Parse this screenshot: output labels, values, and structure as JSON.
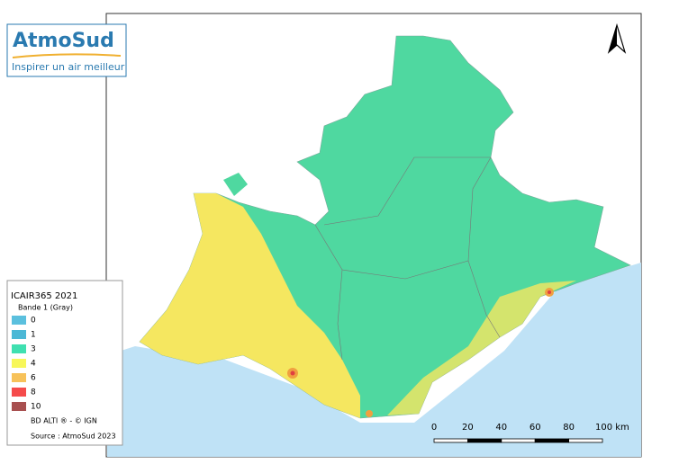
{
  "logo": {
    "name": "AtmoSud",
    "tagline": "Inspirer un air meilleur"
  },
  "legend": {
    "title": "ICAIR365 2021",
    "band": "Bande 1 (Gray)",
    "items": [
      {
        "label": "0",
        "color": "#5bc0de"
      },
      {
        "label": "1",
        "color": "#4cb8d6"
      },
      {
        "label": "3",
        "color": "#3fe0b0"
      },
      {
        "label": "4",
        "color": "#f7f75a"
      },
      {
        "label": "6",
        "color": "#f7c25a"
      },
      {
        "label": "8",
        "color": "#f54b4b"
      },
      {
        "label": "10",
        "color": "#a85050"
      }
    ],
    "credits": [
      "BD ALTI ® - © IGN",
      "Source : AtmoSud 2023"
    ]
  },
  "scale_bar": {
    "labels": [
      "0",
      "20",
      "40",
      "60",
      "80",
      "100 km"
    ]
  }
}
